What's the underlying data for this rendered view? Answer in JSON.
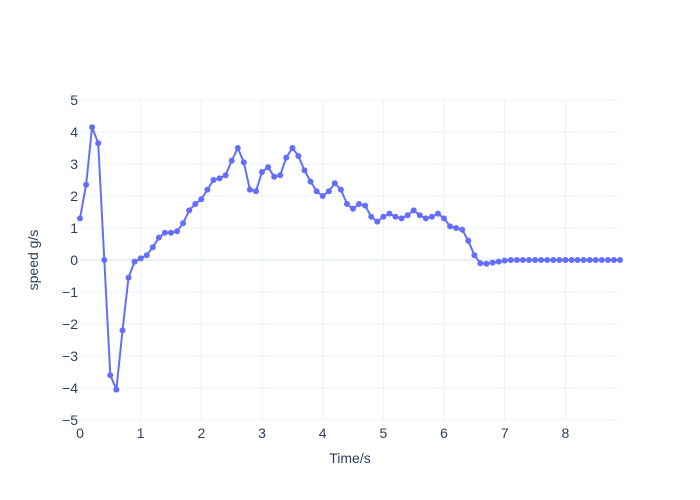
{
  "chart_data": {
    "type": "line",
    "title": "",
    "xlabel": "Time/s",
    "ylabel": "speed g/s",
    "xlim": [
      0,
      8.9
    ],
    "ylim": [
      -5,
      5
    ],
    "grid": true,
    "legend": "none",
    "marker": "circle",
    "colors": {
      "series": "#636efa",
      "grid": "#ebf0f8",
      "text": "#2a3f5f"
    },
    "x_ticks": [
      "0",
      "1",
      "2",
      "3",
      "4",
      "5",
      "6",
      "7",
      "8"
    ],
    "y_ticks": [
      "5",
      "4",
      "3",
      "2",
      "1",
      "0",
      "−1",
      "−2",
      "−3",
      "−4",
      "−5"
    ],
    "x_tick_values": [
      0,
      1,
      2,
      3,
      4,
      5,
      6,
      7,
      8
    ],
    "y_tick_values": [
      5,
      4,
      3,
      2,
      1,
      0,
      -1,
      -2,
      -3,
      -4,
      -5
    ],
    "series": [
      {
        "x": [
          0,
          0.1,
          0.2,
          0.3,
          0.4,
          0.5,
          0.6,
          0.7,
          0.8,
          0.9,
          1.0,
          1.1,
          1.2,
          1.3,
          1.4,
          1.5,
          1.6,
          1.7,
          1.8,
          1.9,
          2.0,
          2.1,
          2.2,
          2.3,
          2.4,
          2.5,
          2.6,
          2.7,
          2.8,
          2.9,
          3.0,
          3.1,
          3.2,
          3.3,
          3.4,
          3.5,
          3.6,
          3.7,
          3.8,
          3.9,
          4.0,
          4.1,
          4.2,
          4.3,
          4.4,
          4.5,
          4.6,
          4.7,
          4.8,
          4.9,
          5.0,
          5.1,
          5.2,
          5.3,
          5.4,
          5.5,
          5.6,
          5.7,
          5.8,
          5.9,
          6.0,
          6.1,
          6.2,
          6.3,
          6.4,
          6.5,
          6.6,
          6.7,
          6.8,
          6.9,
          7.0,
          7.1,
          7.2,
          7.3,
          7.4,
          7.5,
          7.6,
          7.7,
          7.8,
          7.9,
          8.0,
          8.1,
          8.2,
          8.3,
          8.4,
          8.5,
          8.6,
          8.7,
          8.8,
          8.9
        ],
        "y": [
          1.3,
          2.35,
          4.15,
          3.65,
          0.0,
          -3.6,
          -4.05,
          -2.2,
          -0.55,
          -0.05,
          0.05,
          0.15,
          0.4,
          0.7,
          0.85,
          0.85,
          0.9,
          1.15,
          1.55,
          1.75,
          1.9,
          2.2,
          2.5,
          2.55,
          2.65,
          3.1,
          3.5,
          3.05,
          2.2,
          2.15,
          2.75,
          2.9,
          2.6,
          2.65,
          3.2,
          3.5,
          3.25,
          2.8,
          2.45,
          2.15,
          2.0,
          2.15,
          2.4,
          2.2,
          1.75,
          1.6,
          1.75,
          1.7,
          1.35,
          1.2,
          1.35,
          1.45,
          1.35,
          1.3,
          1.4,
          1.55,
          1.4,
          1.3,
          1.35,
          1.45,
          1.3,
          1.05,
          1.0,
          0.95,
          0.6,
          0.15,
          -0.1,
          -0.12,
          -0.08,
          -0.05,
          -0.02,
          0.0,
          0.0,
          0.0,
          0.0,
          0.0,
          0.0,
          0.0,
          0.0,
          0.0,
          0.0,
          0.0,
          0.0,
          0.0,
          0.0,
          0.0,
          0.0,
          0.0,
          0.0,
          0.0
        ]
      }
    ]
  }
}
